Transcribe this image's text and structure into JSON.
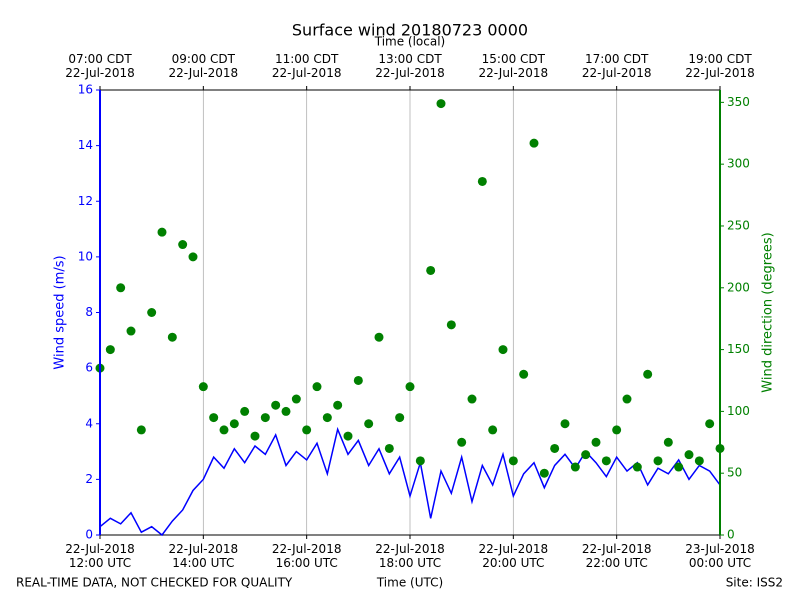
{
  "chart_data": {
    "type": "line",
    "title": "Surface wind 20180723 0000",
    "x_label": "Time (UTC)",
    "x2_label": "Time (local)",
    "y_label": "Wind speed (m/s)",
    "y2_label": "Wind direction (degrees)",
    "footer_left": "REAL-TIME DATA, NOT CHECKED FOR QUALITY",
    "footer_right": "Site: ISS2",
    "x": [
      12.0,
      12.2,
      12.4,
      12.6,
      12.8,
      13.0,
      13.2,
      13.4,
      13.6,
      13.8,
      14.0,
      14.2,
      14.4,
      14.6,
      14.8,
      15.0,
      15.2,
      15.4,
      15.6,
      15.8,
      16.0,
      16.2,
      16.4,
      16.6,
      16.8,
      17.0,
      17.2,
      17.4,
      17.6,
      17.8,
      18.0,
      18.2,
      18.4,
      18.6,
      18.8,
      19.0,
      19.2,
      19.4,
      19.6,
      19.8,
      20.0,
      20.2,
      20.4,
      20.6,
      20.8,
      21.0,
      21.2,
      21.4,
      21.6,
      21.8,
      22.0,
      22.2,
      22.4,
      22.6,
      22.8,
      23.0,
      23.2,
      23.4,
      23.6,
      23.8,
      24.0
    ],
    "xlim": [
      12,
      24
    ],
    "xticks": [
      {
        "value": 12,
        "label": "22-Jul-2018\n12:00 UTC"
      },
      {
        "value": 14,
        "label": "22-Jul-2018\n14:00 UTC"
      },
      {
        "value": 16,
        "label": "22-Jul-2018\n16:00 UTC"
      },
      {
        "value": 18,
        "label": "22-Jul-2018\n18:00 UTC"
      },
      {
        "value": 20,
        "label": "22-Jul-2018\n20:00 UTC"
      },
      {
        "value": 22,
        "label": "22-Jul-2018\n22:00 UTC"
      },
      {
        "value": 24,
        "label": "23-Jul-2018\n00:00 UTC"
      }
    ],
    "x2ticks": [
      {
        "value": 12,
        "label": "07:00 CDT\n22-Jul-2018"
      },
      {
        "value": 14,
        "label": "09:00 CDT\n22-Jul-2018"
      },
      {
        "value": 16,
        "label": "11:00 CDT\n22-Jul-2018"
      },
      {
        "value": 18,
        "label": "13:00 CDT\n22-Jul-2018"
      },
      {
        "value": 20,
        "label": "15:00 CDT\n22-Jul-2018"
      },
      {
        "value": 22,
        "label": "17:00 CDT\n22-Jul-2018"
      },
      {
        "value": 24,
        "label": "19:00 CDT\n22-Jul-2018"
      }
    ],
    "ylim": [
      0,
      16
    ],
    "yticks": [
      0,
      2,
      4,
      6,
      8,
      10,
      12,
      14,
      16
    ],
    "y2lim": [
      0,
      360
    ],
    "y2ticks": [
      0,
      50,
      100,
      150,
      200,
      250,
      300,
      350
    ],
    "y_color": "#0000ff",
    "y2_color": "#008000",
    "grid": "x",
    "series": [
      {
        "name": "Wind speed",
        "type": "line",
        "color": "#0000ff",
        "values": [
          0.3,
          0.6,
          0.4,
          0.8,
          0.1,
          0.3,
          0.0,
          0.5,
          0.9,
          1.6,
          2.0,
          2.8,
          2.4,
          3.1,
          2.6,
          3.2,
          2.9,
          3.6,
          2.5,
          3.0,
          2.7,
          3.3,
          2.2,
          3.8,
          2.9,
          3.4,
          2.5,
          3.1,
          2.2,
          2.8,
          1.4,
          2.6,
          0.6,
          2.3,
          1.5,
          2.8,
          1.2,
          2.5,
          1.8,
          2.9,
          1.4,
          2.2,
          2.6,
          1.7,
          2.5,
          2.9,
          2.4,
          3.0,
          2.6,
          2.1,
          2.8,
          2.3,
          2.6,
          1.8,
          2.4,
          2.2,
          2.7,
          2.0,
          2.5,
          2.3,
          1.8
        ]
      },
      {
        "name": "Wind direction",
        "type": "scatter",
        "axis": "y2",
        "color": "#008000",
        "values": [
          135,
          150,
          200,
          165,
          85,
          180,
          245,
          160,
          235,
          225,
          120,
          95,
          85,
          90,
          100,
          80,
          95,
          105,
          100,
          110,
          85,
          120,
          95,
          105,
          80,
          125,
          90,
          160,
          70,
          95,
          120,
          60,
          214,
          349,
          170,
          75,
          110,
          286,
          85,
          150,
          60,
          130,
          317,
          50,
          70,
          90,
          55,
          65,
          75,
          60,
          85,
          110,
          55,
          130,
          60,
          75,
          55,
          65,
          60,
          90,
          70
        ]
      }
    ]
  }
}
